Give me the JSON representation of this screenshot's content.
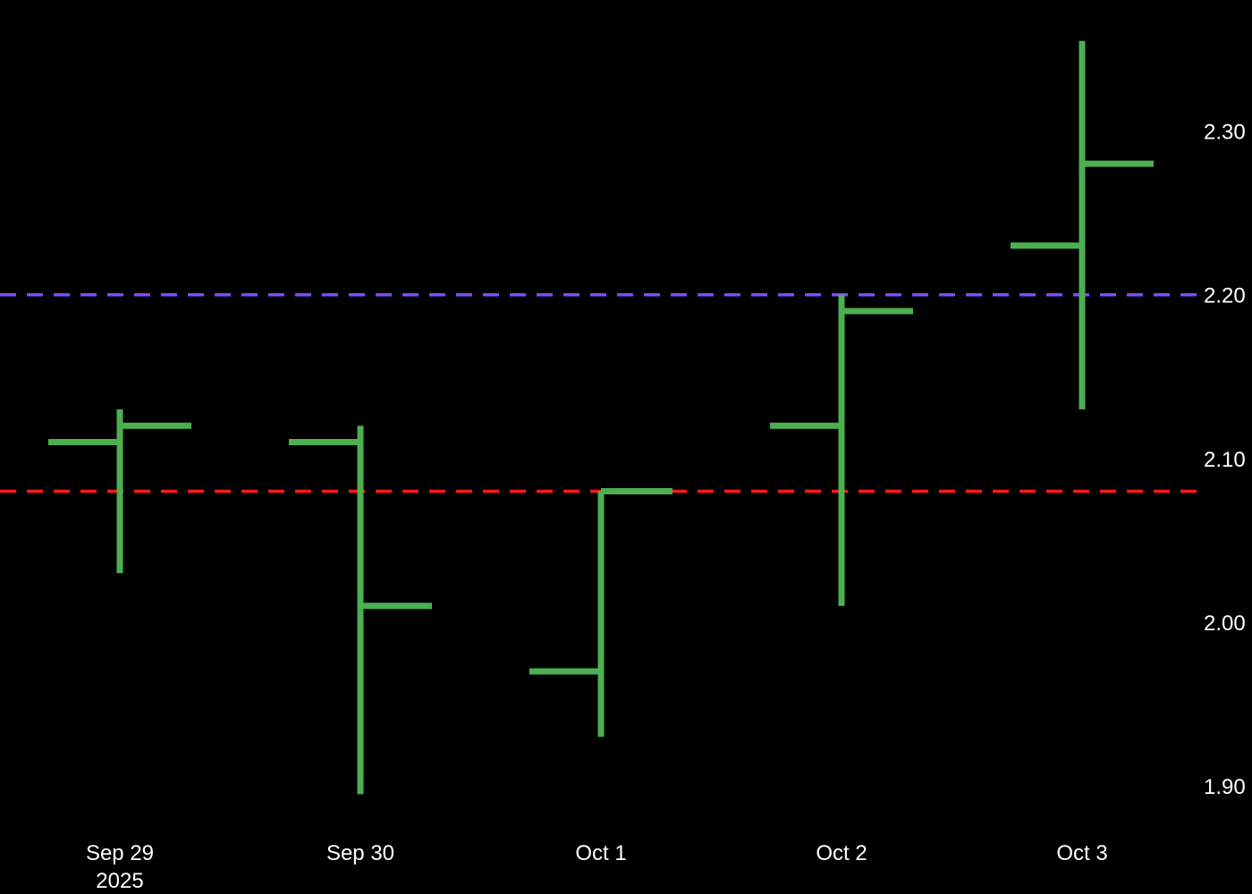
{
  "chart_data": {
    "type": "ohlc",
    "title": "",
    "xlabel": "",
    "ylabel": "",
    "x": [
      "Sep 29",
      "Sep 30",
      "Oct 1",
      "Oct 2",
      "Oct 3"
    ],
    "x_year_label": "2025",
    "open": [
      2.11,
      2.11,
      1.97,
      2.12,
      2.23
    ],
    "high": [
      2.13,
      2.12,
      2.08,
      2.2,
      2.355
    ],
    "low": [
      2.03,
      1.895,
      1.93,
      2.01,
      2.13
    ],
    "close": [
      2.12,
      2.01,
      2.08,
      2.19,
      2.28
    ],
    "ylim": [
      1.875,
      2.38
    ],
    "yticks": [
      "1.90",
      "2.00",
      "2.10",
      "2.20",
      "2.30"
    ],
    "y_axis_side": "right",
    "grid": false,
    "bar_color": "#4caf50",
    "background": "#000000",
    "reference_lines": [
      {
        "value": 2.2,
        "color": "#7c4dff",
        "style": "dashed"
      },
      {
        "value": 2.08,
        "color": "#ff1a1a",
        "style": "dashed"
      }
    ]
  }
}
